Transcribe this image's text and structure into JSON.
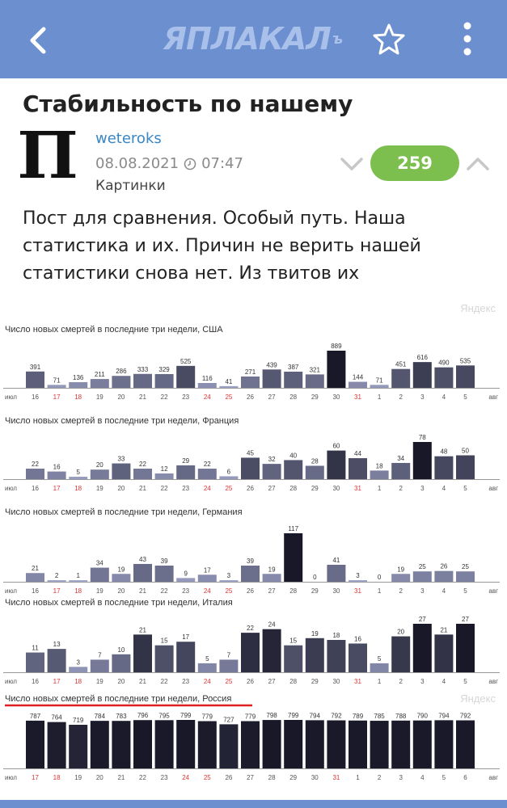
{
  "header": {
    "logo_text": "ЯПЛАКАЛ",
    "logo_suffix": "ъ",
    "back_icon": "chevron-left-icon",
    "favorite_icon": "star-icon",
    "menu_icon": "kebab-menu-icon",
    "color": "#6b8fcf"
  },
  "post": {
    "title": "Стабильность по нашему",
    "avatar_glyph": "П",
    "author": "weteroks",
    "date": "08.08.2021",
    "time": "07:47",
    "category": "Картинки",
    "rating": "259",
    "rating_color": "#7cbf4f",
    "text": "Пост для сравнения. Особый путь. Наша статистика и их. Причин не верить нашей статистики снова нет. Из твитов их"
  },
  "chart_data": [
    {
      "type": "bar",
      "title": "Число новых смертей в последние три недели, США",
      "watermark": "Яндекс",
      "categories": [
        "16",
        "17",
        "18",
        "19",
        "20",
        "21",
        "22",
        "23",
        "24",
        "25",
        "26",
        "27",
        "28",
        "29",
        "30",
        "31",
        "1",
        "2",
        "3",
        "4",
        "5"
      ],
      "values": [
        391,
        71,
        136,
        211,
        286,
        333,
        329,
        525,
        116,
        41,
        271,
        439,
        387,
        321,
        889,
        144,
        71,
        451,
        616,
        490,
        535
      ],
      "axis_start_label": "июл",
      "axis_end_label": "авг",
      "weekend_categories": [
        "17",
        "18",
        "24",
        "25",
        "31"
      ]
    },
    {
      "type": "bar",
      "title": "Число новых смертей в последние три недели, Франция",
      "categories": [
        "16",
        "17",
        "18",
        "19",
        "20",
        "21",
        "22",
        "23",
        "24",
        "25",
        "26",
        "27",
        "28",
        "29",
        "30",
        "31",
        "1",
        "2",
        "3",
        "4",
        "5"
      ],
      "values": [
        22,
        16,
        5,
        20,
        33,
        22,
        12,
        29,
        22,
        6,
        45,
        32,
        40,
        28,
        60,
        44,
        18,
        34,
        78,
        48,
        50
      ],
      "axis_start_label": "июл",
      "axis_end_label": "авг",
      "weekend_categories": [
        "17",
        "18",
        "24",
        "25",
        "31"
      ]
    },
    {
      "type": "bar",
      "title": "Число новых смертей в последние три недели, Германия",
      "categories": [
        "16",
        "17",
        "18",
        "19",
        "20",
        "21",
        "22",
        "23",
        "24",
        "25",
        "26",
        "27",
        "28",
        "29",
        "30",
        "31",
        "1",
        "2",
        "3",
        "4",
        "5"
      ],
      "values": [
        21,
        2,
        1,
        34,
        19,
        43,
        39,
        9,
        17,
        3,
        39,
        19,
        117,
        0,
        41,
        3,
        0,
        19,
        25,
        26,
        25
      ],
      "axis_start_label": "июл",
      "axis_end_label": "авг",
      "weekend_categories": [
        "17",
        "18",
        "24",
        "25",
        "31"
      ]
    },
    {
      "type": "bar",
      "title": "Число новых смертей в последние три недели, Италия",
      "categories": [
        "16",
        "17",
        "18",
        "19",
        "20",
        "21",
        "22",
        "23",
        "24",
        "25",
        "26",
        "27",
        "28",
        "29",
        "30",
        "31",
        "1",
        "2",
        "3",
        "4",
        "5"
      ],
      "values": [
        11,
        13,
        3,
        7,
        10,
        21,
        15,
        17,
        5,
        7,
        22,
        24,
        15,
        19,
        18,
        16,
        5,
        20,
        27,
        21,
        27
      ],
      "axis_start_label": "июл",
      "axis_end_label": "авг",
      "weekend_categories": [
        "17",
        "18",
        "24",
        "25",
        "31"
      ]
    },
    {
      "type": "bar",
      "title": "Число новых смертей в последние три недели, Россия",
      "watermark": "Яндекс",
      "categories": [
        "17",
        "18",
        "19",
        "20",
        "21",
        "22",
        "23",
        "24",
        "25",
        "26",
        "27",
        "28",
        "29",
        "30",
        "31",
        "1",
        "2",
        "3",
        "4",
        "5",
        "6"
      ],
      "values": [
        787,
        764,
        719,
        784,
        783,
        796,
        795,
        799,
        779,
        727,
        779,
        798,
        799,
        794,
        792,
        789,
        785,
        788,
        790,
        794,
        792
      ],
      "axis_start_label": "июл",
      "axis_end_label": "авг",
      "weekend_categories": [
        "17",
        "18",
        "24",
        "25",
        "31"
      ],
      "highlight_underline_color": "#e02020"
    }
  ]
}
